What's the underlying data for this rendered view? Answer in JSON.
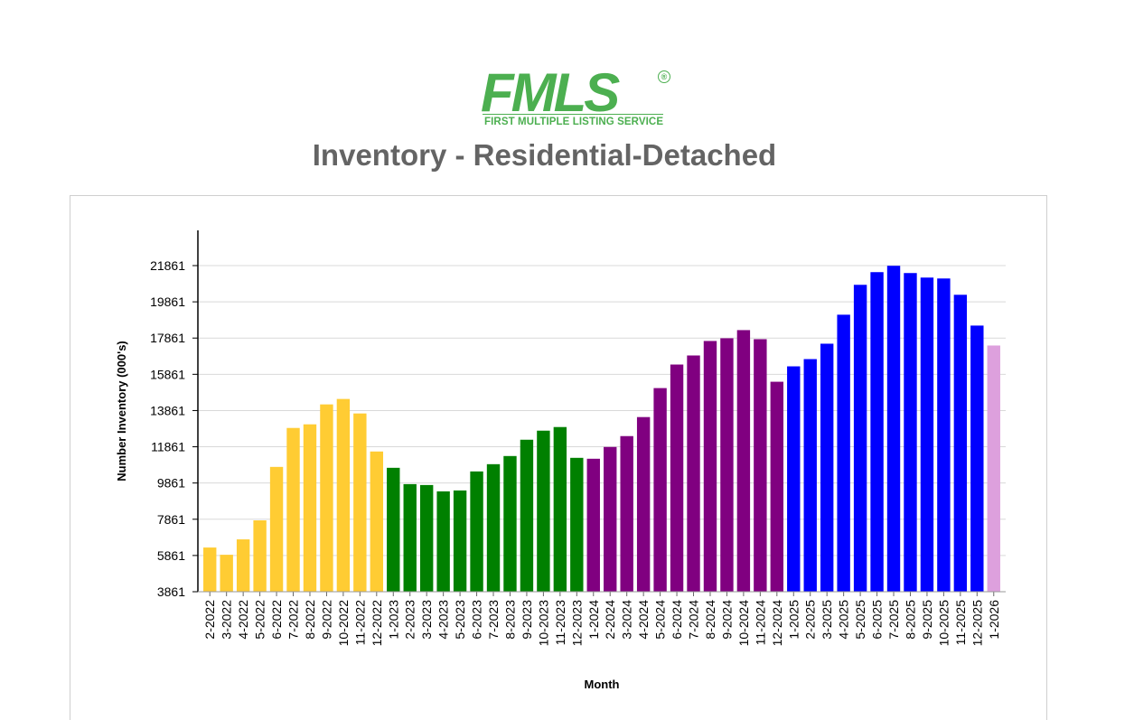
{
  "header": {
    "logo_text": "FMLS",
    "logo_subtitle": "FIRST MULTIPLE LISTING SERVICE",
    "logo_registered": "®",
    "title": "Inventory - Residential-Detached"
  },
  "colors": {
    "brand_green": "#4caf50",
    "title_gray": "#646464",
    "year_2022": "#ffcc33",
    "year_2023": "#008000",
    "year_2024": "#800080",
    "year_2025": "#0000ff",
    "year_2026": "#dda0dd"
  },
  "chart_data": {
    "type": "bar",
    "title": "Inventory - Residential-Detached",
    "xlabel": "Month",
    "ylabel": "Number Inventory (000's)",
    "ylim": [
      3861,
      23000
    ],
    "yticks": [
      3861,
      5861,
      7861,
      9861,
      11861,
      13861,
      15861,
      17861,
      19861,
      21861
    ],
    "grid": true,
    "categories": [
      "2-2022",
      "3-2022",
      "4-2022",
      "5-2022",
      "6-2022",
      "7-2022",
      "8-2022",
      "9-2022",
      "10-2022",
      "11-2022",
      "12-2022",
      "1-2023",
      "2-2023",
      "3-2023",
      "4-2023",
      "5-2023",
      "6-2023",
      "7-2023",
      "8-2023",
      "9-2023",
      "10-2023",
      "11-2023",
      "12-2023",
      "1-2024",
      "2-2024",
      "3-2024",
      "4-2024",
      "5-2024",
      "6-2024",
      "7-2024",
      "8-2024",
      "9-2024",
      "10-2024",
      "11-2024",
      "12-2024",
      "1-2025",
      "2-2025",
      "3-2025",
      "4-2025",
      "5-2025",
      "6-2025",
      "7-2025",
      "8-2025",
      "9-2025",
      "10-2025",
      "11-2025",
      "12-2025",
      "1-2026"
    ],
    "values": [
      6300,
      5900,
      6750,
      7800,
      10750,
      12900,
      13100,
      14200,
      14500,
      13700,
      11600,
      10700,
      9800,
      9750,
      9400,
      9450,
      10500,
      10900,
      11350,
      12250,
      12750,
      12950,
      11250,
      11200,
      11850,
      12450,
      13500,
      15100,
      16400,
      16900,
      17700,
      17850,
      18300,
      17800,
      15450,
      16300,
      16700,
      17550,
      19150,
      20800,
      21500,
      21850,
      21450,
      21200,
      21150,
      20250,
      18550,
      17450
    ],
    "year_colors": {
      "2022": "#ffcc33",
      "2023": "#008000",
      "2024": "#800080",
      "2025": "#0000ff",
      "2026": "#dda0dd"
    }
  }
}
